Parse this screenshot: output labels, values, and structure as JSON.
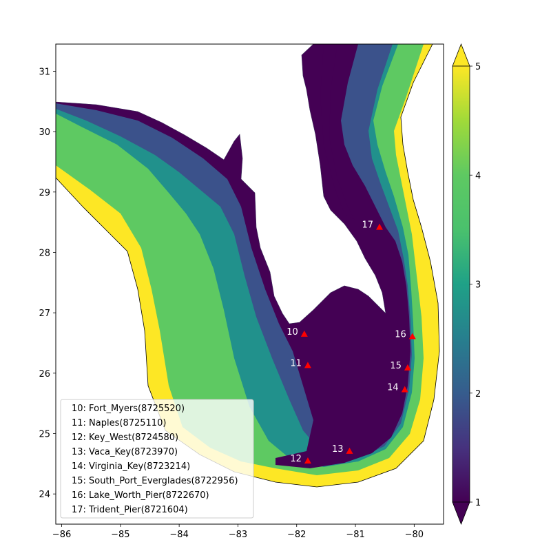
{
  "colors": {
    "level1": "#440154",
    "level2": "#3b528b",
    "level3": "#21918c",
    "level4": "#5ec962",
    "level5": "#fde725",
    "land": "#ffffff",
    "marker": "#ff0000"
  },
  "chart_data": {
    "type": "heatmap",
    "title": "",
    "xlabel": "",
    "ylabel": "",
    "xlim": [
      -86.1,
      -79.5
    ],
    "ylim": [
      23.5,
      31.45
    ],
    "xticks": [
      "−86",
      "−85",
      "−84",
      "−83",
      "−82",
      "−81",
      "−80"
    ],
    "xtick_values": [
      -86,
      -85,
      -84,
      -83,
      -82,
      -81,
      -80
    ],
    "yticks": [
      "24",
      "25",
      "26",
      "27",
      "28",
      "29",
      "30",
      "31"
    ],
    "ytick_values": [
      24,
      25,
      26,
      27,
      28,
      29,
      30,
      31
    ],
    "colorbar": {
      "min": 1,
      "max": 5,
      "ticks": [
        "1",
        "2",
        "3",
        "4",
        "5"
      ],
      "tick_values": [
        1,
        2,
        3,
        4,
        5
      ],
      "extend": "both",
      "colormap": "viridis"
    },
    "stations": [
      {
        "id": "10",
        "lon": -81.87,
        "lat": 26.65
      },
      {
        "id": "11",
        "lon": -81.81,
        "lat": 26.13
      },
      {
        "id": "12",
        "lon": -81.81,
        "lat": 24.55
      },
      {
        "id": "13",
        "lon": -81.1,
        "lat": 24.71
      },
      {
        "id": "14",
        "lon": -80.16,
        "lat": 25.73
      },
      {
        "id": "15",
        "lon": -80.11,
        "lat": 26.09
      },
      {
        "id": "16",
        "lon": -80.03,
        "lat": 26.61
      },
      {
        "id": "17",
        "lon": -80.59,
        "lat": 28.42
      }
    ],
    "legend_position": "lower-left",
    "legend_entries": [
      "10: Fort_Myers(8725520)",
      "11: Naples(8725110)",
      "12: Key_West(8724580)",
      "13: Vaca_Key(8723970)",
      "14: Virginia_Key(8723214)",
      "15: South_Port_Everglades(8722956)",
      "16: Lake_Worth_Pier(8722670)",
      "17: Trident_Pier(8721604)"
    ]
  }
}
